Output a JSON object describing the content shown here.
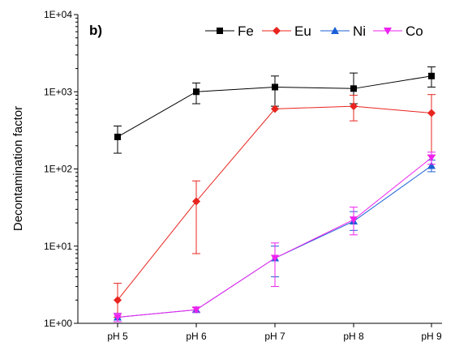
{
  "chart_data": {
    "type": "line",
    "panel_label": "b)",
    "ylabel": "Decontamination factor",
    "xlabel": "",
    "y_scale": "log",
    "ylim": [
      1,
      10000
    ],
    "y_ticks": [
      1,
      10,
      100,
      1000,
      10000
    ],
    "y_tick_labels": [
      "1E+00",
      "1E+01",
      "1E+02",
      "1E+03",
      "1E+04"
    ],
    "categories": [
      "pH 5",
      "pH 6",
      "pH 7",
      "pH 8",
      "pH 9"
    ],
    "legend_position": "top-right",
    "grid": false,
    "series": [
      {
        "name": "Fe",
        "color": "#000000",
        "marker": "square",
        "values": [
          260,
          1000,
          1150,
          1100,
          1600
        ],
        "err_low": [
          160,
          700,
          650,
          700,
          1150
        ],
        "err_high": [
          360,
          1300,
          1600,
          1750,
          2100
        ]
      },
      {
        "name": "Eu",
        "color": "#e8241e",
        "marker": "diamond",
        "values": [
          2,
          38,
          600,
          650,
          530
        ],
        "err_low": [
          1.2,
          8,
          600,
          420,
          150
        ],
        "err_high": [
          3.3,
          70,
          600,
          900,
          920
        ]
      },
      {
        "name": "Ni",
        "color": "#1c5fd6",
        "marker": "triangle-up",
        "values": [
          1.2,
          1.5,
          7,
          21,
          110
        ],
        "err_low": [
          1.05,
          1.4,
          4,
          16,
          92
        ],
        "err_high": [
          1.35,
          1.6,
          10,
          28,
          130
        ]
      },
      {
        "name": "Co",
        "color": "#ee22ee",
        "marker": "triangle-down",
        "values": [
          1.2,
          1.5,
          7,
          22,
          140
        ],
        "err_low": [
          1.05,
          1.4,
          3,
          14,
          115
        ],
        "err_high": [
          1.35,
          1.6,
          11,
          32,
          165
        ]
      }
    ]
  }
}
